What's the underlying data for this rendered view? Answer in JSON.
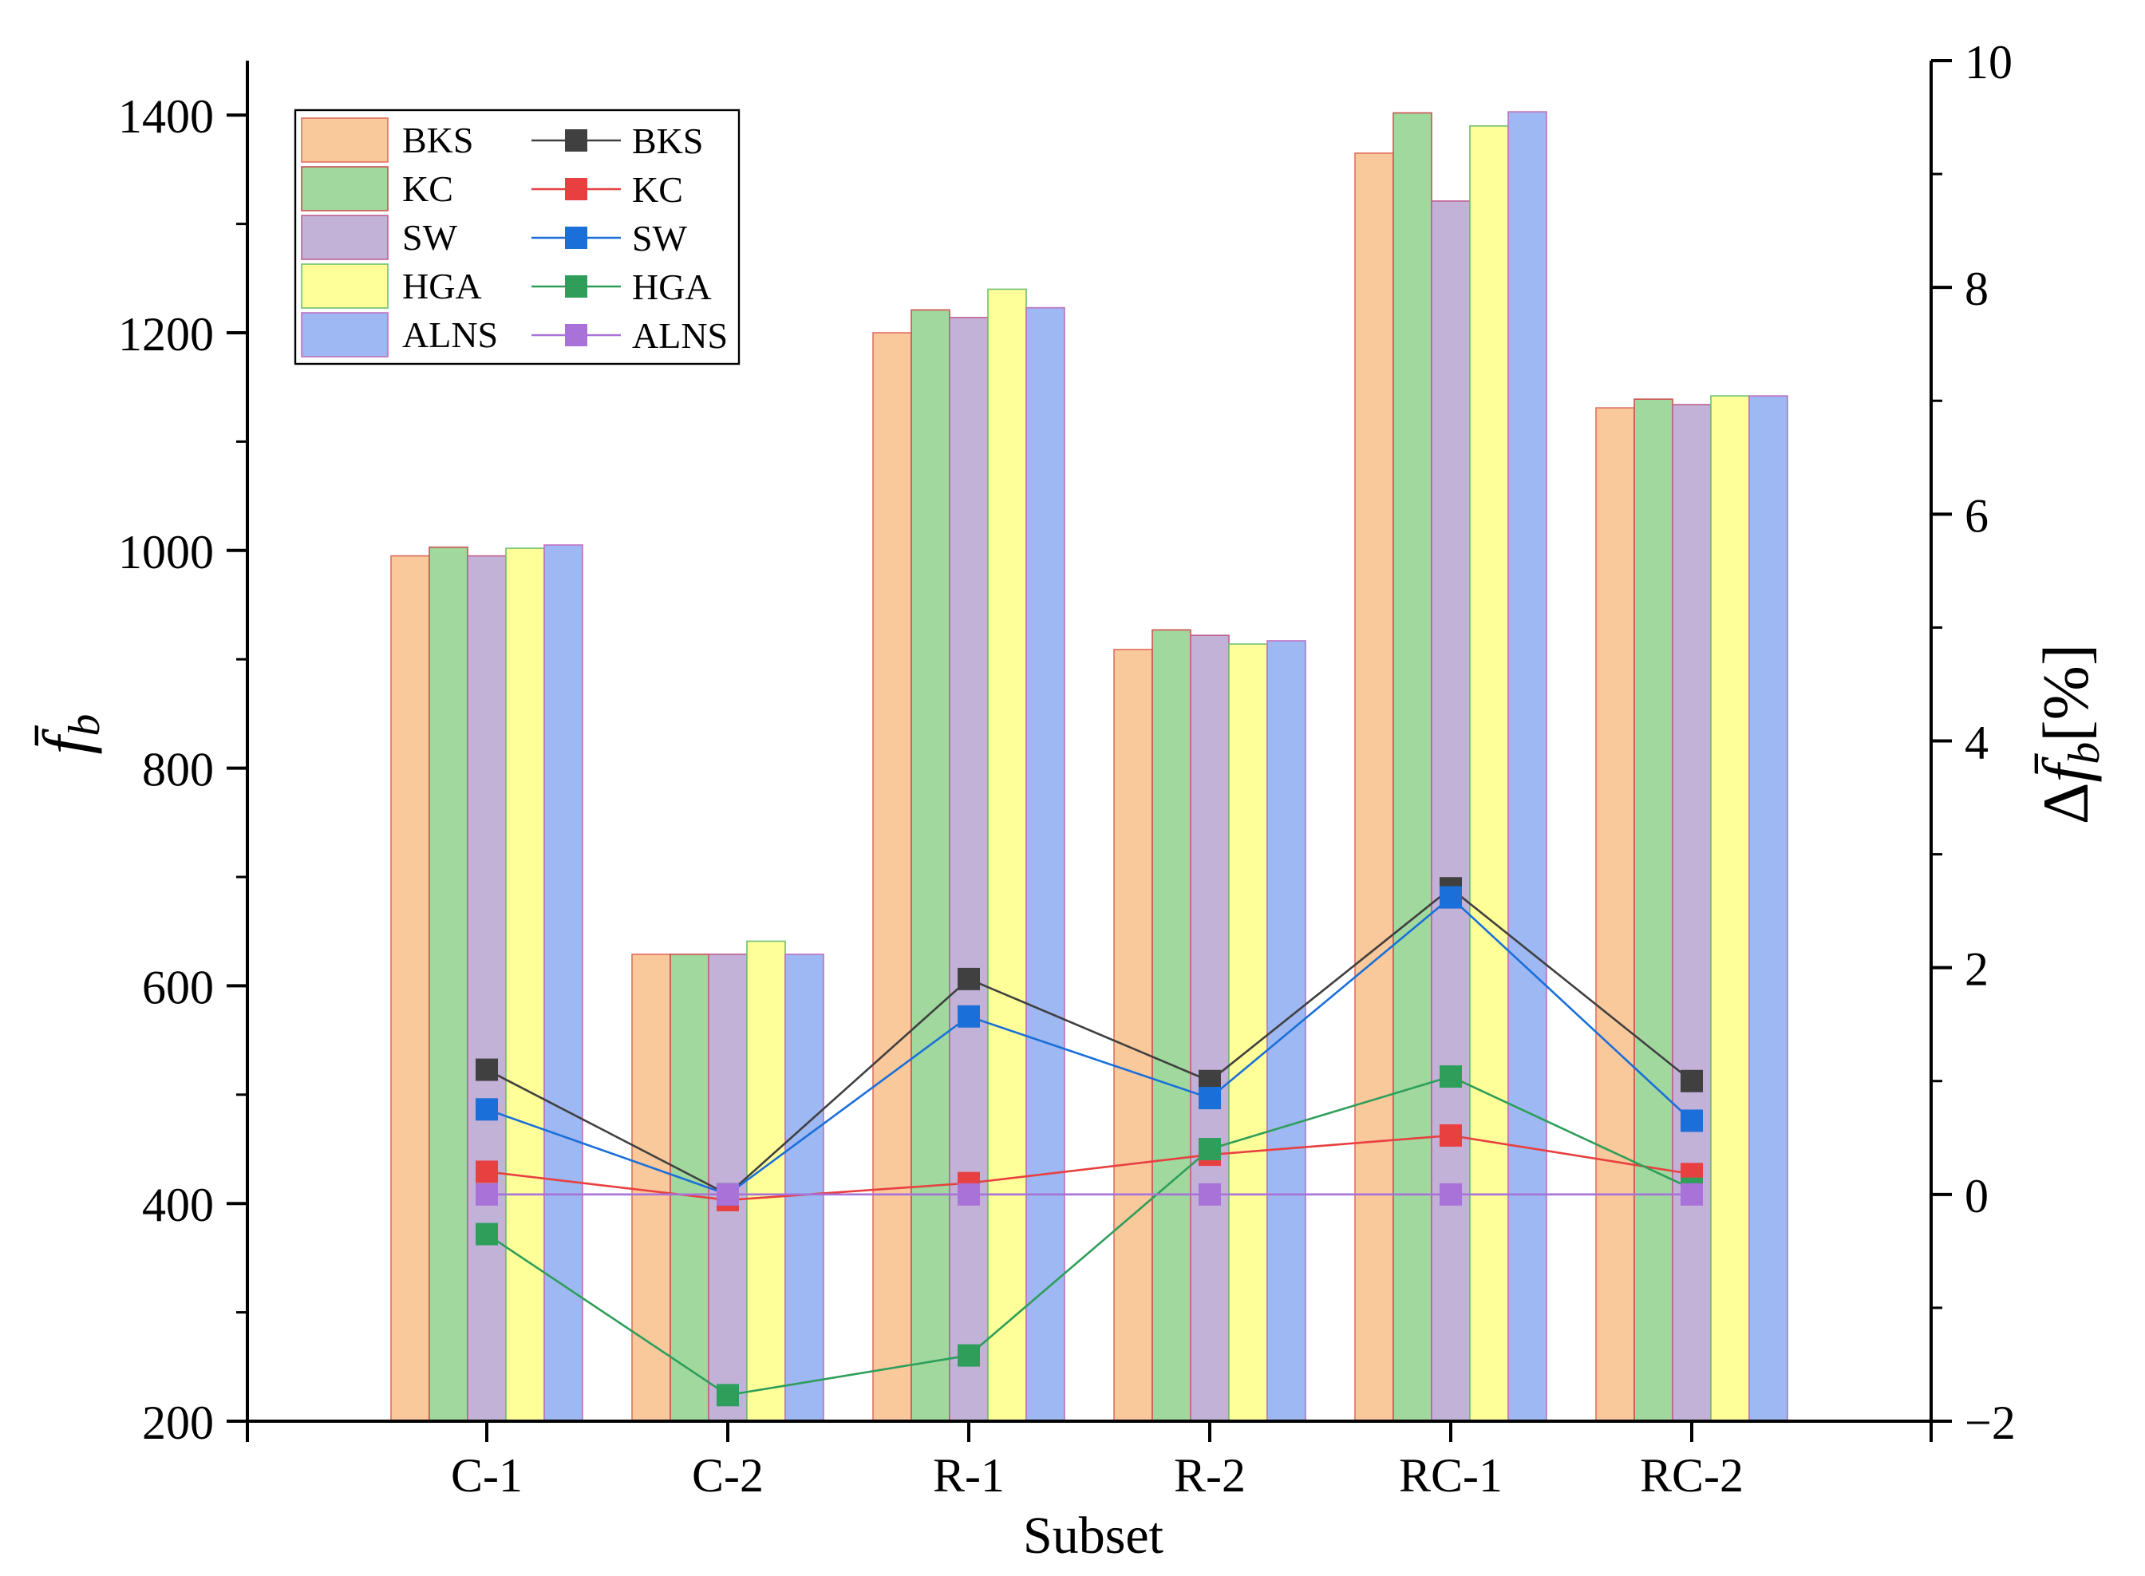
{
  "chart_data": {
    "type": "bar",
    "categories": [
      "C-1",
      "C-2",
      "R-1",
      "R-2",
      "RC-1",
      "RC-2"
    ],
    "xlabel": "Subset",
    "ylabel": "f̄",
    "ylabel_sub": "b",
    "y2label_prefix": "Δ",
    "y2label_var": "f̄",
    "y2label_sub": "b",
    "y2label_unit": "[%]",
    "ylim": [
      200,
      1450
    ],
    "y2lim": [
      -2,
      10
    ],
    "yticks": [
      "200",
      "400",
      "600",
      "800",
      "1000",
      "1200",
      "1400"
    ],
    "y2ticks": [
      "−2",
      "0",
      "2",
      "4",
      "6",
      "8",
      "10"
    ],
    "legend_position": "top-left",
    "bar_series": [
      {
        "name": "BKS",
        "color": "#F9C89B",
        "edge": "#E07060",
        "values": [
          995,
          629,
          1200,
          909,
          1365,
          1131
        ]
      },
      {
        "name": "KC",
        "color": "#A0D89D",
        "edge": "#D05050",
        "values": [
          1003,
          629,
          1221,
          927,
          1402,
          1139
        ]
      },
      {
        "name": "SW",
        "color": "#C3B2D8",
        "edge": "#C06090",
        "values": [
          995,
          629,
          1214,
          922,
          1321,
          1134
        ]
      },
      {
        "name": "HGA",
        "color": "#FFFF99",
        "edge": "#70C070",
        "values": [
          1002,
          641,
          1240,
          914,
          1390,
          1142
        ]
      },
      {
        "name": "ALNS",
        "color": "#9DB8F2",
        "edge": "#C070C0",
        "values": [
          1005,
          629,
          1223,
          917,
          1403,
          1142
        ]
      }
    ],
    "line_series": [
      {
        "name": "BKS",
        "color": "#404040",
        "values": [
          1.1,
          0.0,
          1.9,
          1.0,
          2.7,
          1.0
        ]
      },
      {
        "name": "KC",
        "color": "#E84040",
        "values": [
          0.2,
          -0.05,
          0.1,
          0.35,
          0.52,
          0.18
        ]
      },
      {
        "name": "SW",
        "color": "#1A6FD8",
        "values": [
          0.75,
          0.0,
          1.57,
          0.85,
          2.62,
          0.65
        ]
      },
      {
        "name": "HGA",
        "color": "#2E9E5A",
        "values": [
          -0.35,
          -1.77,
          -1.42,
          0.4,
          1.04,
          0.05
        ]
      },
      {
        "name": "ALNS",
        "color": "#A872D8",
        "values": [
          0.0,
          0.0,
          0.0,
          0.0,
          0.0,
          0.0
        ]
      }
    ]
  }
}
